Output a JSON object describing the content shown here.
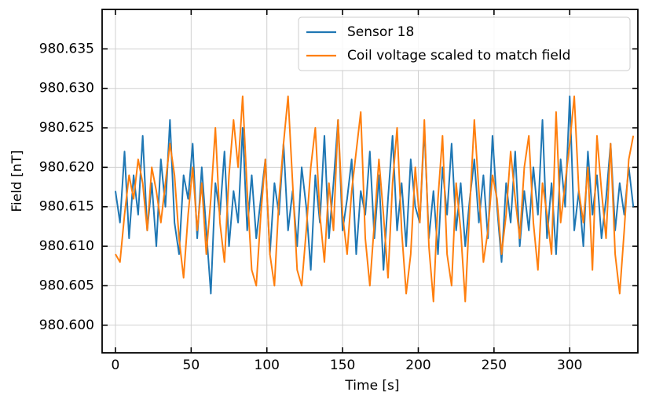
{
  "chart_data": {
    "type": "line",
    "xlabel": "Time [s]",
    "ylabel": "Field [nT]",
    "x": [
      0,
      3,
      6,
      9,
      12,
      15,
      18,
      21,
      24,
      27,
      30,
      33,
      36,
      39,
      42,
      45,
      48,
      51,
      54,
      57,
      60,
      63,
      66,
      69,
      72,
      75,
      78,
      81,
      84,
      87,
      90,
      93,
      96,
      99,
      102,
      105,
      108,
      111,
      114,
      117,
      120,
      123,
      126,
      129,
      132,
      135,
      138,
      141,
      144,
      147,
      150,
      153,
      156,
      159,
      162,
      165,
      168,
      171,
      174,
      177,
      180,
      183,
      186,
      189,
      192,
      195,
      198,
      201,
      204,
      207,
      210,
      213,
      216,
      219,
      222,
      225,
      228,
      231,
      234,
      237,
      240,
      243,
      246,
      249,
      252,
      255,
      258,
      261,
      264,
      267,
      270,
      273,
      276,
      279,
      282,
      285,
      288,
      291,
      294,
      297,
      300,
      303,
      306,
      309,
      312,
      315,
      318,
      321,
      324,
      327,
      330,
      333,
      336,
      339,
      342
    ],
    "series": [
      {
        "name": "Sensor 18",
        "color": "#1f77b4",
        "values": [
          980.617,
          980.613,
          980.622,
          980.611,
          980.619,
          980.614,
          980.624,
          980.612,
          980.618,
          980.61,
          980.621,
          980.615,
          980.626,
          980.613,
          980.609,
          980.619,
          980.616,
          980.623,
          980.611,
          980.62,
          980.612,
          980.604,
          980.618,
          980.614,
          980.622,
          980.61,
          980.617,
          980.613,
          980.625,
          980.612,
          980.619,
          980.611,
          980.616,
          980.621,
          980.609,
          980.618,
          980.614,
          980.623,
          980.612,
          980.617,
          980.61,
          980.62,
          980.615,
          980.607,
          980.619,
          980.613,
          980.624,
          980.611,
          980.618,
          980.626,
          980.612,
          980.616,
          980.621,
          980.609,
          980.617,
          980.614,
          980.622,
          980.611,
          980.619,
          980.607,
          980.616,
          980.624,
          980.612,
          980.618,
          980.61,
          980.621,
          980.615,
          980.613,
          980.625,
          980.611,
          980.617,
          980.609,
          980.62,
          980.614,
          980.623,
          980.612,
          980.618,
          980.61,
          980.616,
          980.621,
          980.613,
          980.619,
          980.611,
          980.624,
          980.615,
          980.608,
          980.618,
          980.613,
          980.622,
          980.61,
          980.617,
          980.612,
          980.62,
          980.614,
          980.626,
          980.611,
          980.618,
          980.609,
          980.621,
          980.615,
          980.629,
          980.612,
          980.617,
          980.61,
          980.622,
          980.614,
          980.619,
          980.611,
          980.616,
          980.623,
          980.612,
          980.618,
          980.614,
          980.62,
          980.615
        ]
      },
      {
        "name": "Coil voltage scaled to match field",
        "color": "#ff7f0e",
        "values": [
          980.609,
          980.608,
          980.614,
          980.619,
          980.616,
          980.621,
          980.618,
          980.612,
          980.62,
          980.617,
          980.613,
          980.618,
          980.623,
          980.619,
          980.611,
          980.606,
          980.614,
          980.62,
          980.612,
          980.618,
          980.609,
          980.616,
          980.625,
          980.613,
          980.608,
          980.619,
          980.626,
          980.62,
          980.629,
          980.617,
          980.607,
          980.605,
          980.614,
          980.621,
          980.609,
          980.605,
          980.616,
          980.623,
          980.629,
          980.618,
          980.607,
          980.605,
          980.612,
          980.62,
          980.625,
          980.614,
          980.608,
          980.618,
          980.612,
          980.626,
          980.614,
          980.609,
          980.617,
          980.622,
          980.627,
          980.611,
          980.605,
          980.613,
          980.621,
          980.614,
          980.606,
          980.618,
          980.625,
          980.612,
          980.604,
          980.609,
          980.62,
          980.613,
          980.626,
          980.61,
          980.603,
          980.616,
          980.624,
          980.609,
          980.605,
          980.618,
          980.612,
          980.603,
          980.615,
          980.626,
          980.617,
          980.608,
          980.612,
          980.619,
          980.616,
          980.609,
          980.614,
          980.622,
          980.616,
          980.611,
          980.62,
          980.624,
          980.613,
          980.607,
          980.618,
          980.614,
          980.609,
          980.627,
          980.613,
          980.618,
          980.623,
          980.629,
          980.617,
          980.613,
          980.62,
          980.607,
          980.624,
          980.617,
          980.611,
          980.623,
          980.609,
          980.604,
          980.612,
          980.621,
          980.624
        ]
      }
    ],
    "xlim": [
      -8.8,
      345
    ],
    "ylim": [
      980.5965,
      980.64
    ],
    "xticks": [
      0,
      50,
      100,
      150,
      200,
      250,
      300
    ],
    "yticks": [
      {
        "value": 980.6,
        "label": "980.600"
      },
      980.605,
      {
        "value": 980.61,
        "label": "980.610"
      },
      980.615,
      {
        "value": 980.62,
        "label": "980.620"
      },
      980.625,
      {
        "value": 980.63,
        "label": "980.630"
      },
      980.635
    ],
    "grid": true,
    "legend": "upper right"
  }
}
